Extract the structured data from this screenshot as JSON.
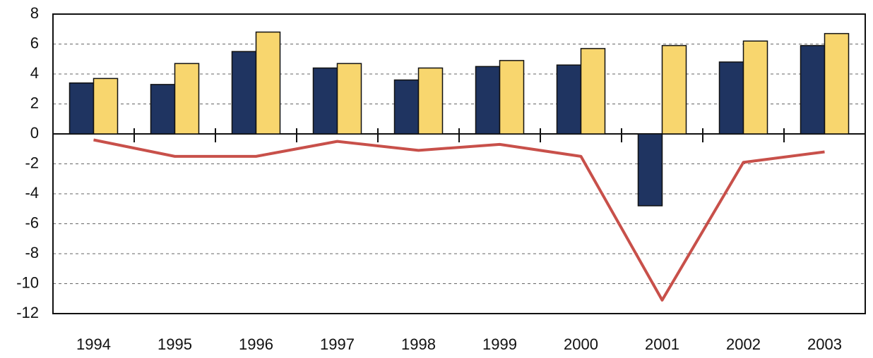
{
  "chart_data": {
    "type": "bar",
    "categories": [
      "1994",
      "1995",
      "1996",
      "1997",
      "1998",
      "1999",
      "2000",
      "2001",
      "2002",
      "2003"
    ],
    "series": [
      {
        "type": "bar",
        "color": "#1f3461",
        "values": [
          3.4,
          3.3,
          5.5,
          4.4,
          3.6,
          4.5,
          4.6,
          -4.8,
          4.8,
          5.9
        ]
      },
      {
        "type": "bar",
        "color": "#f8d66e",
        "values": [
          3.7,
          4.7,
          6.8,
          4.7,
          4.4,
          4.9,
          5.7,
          5.9,
          6.2,
          6.7
        ]
      },
      {
        "type": "line",
        "color": "#c8504a",
        "values": [
          -0.4,
          -1.5,
          -1.5,
          -0.5,
          -1.1,
          -0.7,
          -1.5,
          -11.1,
          -1.9,
          -1.2
        ]
      }
    ],
    "ylim": [
      -12,
      8
    ],
    "yticks": [
      8,
      6,
      4,
      2,
      0,
      -2,
      -4,
      -6,
      -8,
      -10,
      -12
    ],
    "grid": true
  }
}
